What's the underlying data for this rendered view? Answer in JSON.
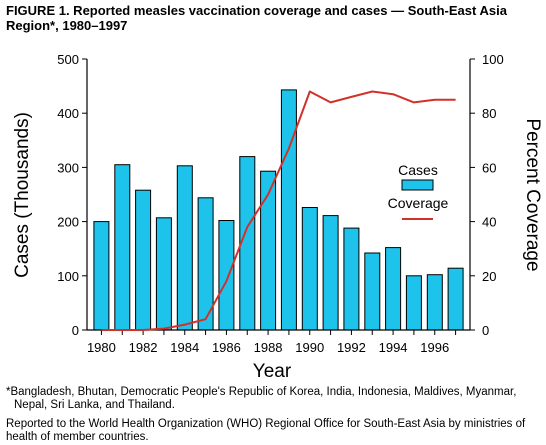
{
  "figure": {
    "title": "FIGURE 1. Reported measles vaccination coverage and cases — South-East Asia Region*, 1980–1997"
  },
  "footnotes": {
    "asterisk": "*Bangladesh, Bhutan, Democratic People's Republic of Korea, India, Indonesia, Maldives, Myanmar, Nepal, Sri Lanka, and Thailand.",
    "source": "Reported to the World Health Organization (WHO) Regional Office for South-East Asia by ministries of health of member countries."
  },
  "colors": {
    "bar_fill": "#1ec3ec",
    "line": "#d2312a",
    "axis": "#000000"
  },
  "chart_data": {
    "type": "bar",
    "title": "",
    "xlabel": "Year",
    "ylabel": "Cases (Thousands)",
    "y2label": "Percent Coverage",
    "ylim": [
      0,
      500
    ],
    "y2lim": [
      0,
      100
    ],
    "yticks": [
      0,
      100,
      200,
      300,
      400,
      500
    ],
    "y2ticks": [
      0,
      20,
      40,
      60,
      80,
      100
    ],
    "grid": false,
    "legend_position": "right",
    "x": [
      1980,
      1981,
      1982,
      1983,
      1984,
      1985,
      1986,
      1987,
      1988,
      1989,
      1990,
      1991,
      1992,
      1993,
      1994,
      1995,
      1996,
      1997
    ],
    "xtick_labels": [
      "1980",
      "1982",
      "1984",
      "1986",
      "1988",
      "1990",
      "1992",
      "1994",
      "1996"
    ],
    "series": [
      {
        "name": "Cases",
        "type": "bar",
        "axis": "left",
        "values": [
          200,
          305,
          258,
          207,
          303,
          244,
          202,
          320,
          293,
          443,
          226,
          211,
          188,
          142,
          152,
          100,
          102,
          114
        ]
      },
      {
        "name": "Coverage",
        "type": "line",
        "axis": "right",
        "values": [
          0,
          0,
          0,
          0.5,
          2,
          4,
          18,
          38,
          50,
          67,
          88,
          84,
          86,
          88,
          87,
          84,
          85,
          85
        ]
      }
    ]
  }
}
